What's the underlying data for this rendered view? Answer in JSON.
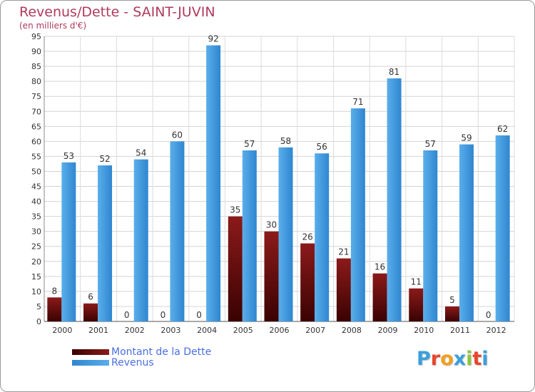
{
  "chart_data": {
    "type": "bar",
    "title": "Revenus/Dette - SAINT-JUVIN",
    "subtitle": "(en milliers d'€)",
    "categories": [
      "2000",
      "2001",
      "2002",
      "2003",
      "2004",
      "2005",
      "2006",
      "2007",
      "2008",
      "2009",
      "2010",
      "2011",
      "2012"
    ],
    "series": [
      {
        "name": "Montant de la Dette",
        "color": "#6b0a0a",
        "values": [
          8,
          6,
          0,
          0,
          0,
          35,
          30,
          26,
          21,
          16,
          11,
          5,
          0
        ]
      },
      {
        "name": "Revenus",
        "color": "#3e97e0",
        "values": [
          53,
          52,
          54,
          60,
          92,
          57,
          58,
          56,
          71,
          81,
          57,
          59,
          62
        ]
      }
    ],
    "ylim": [
      0,
      95
    ],
    "yticks": [
      0,
      5,
      10,
      15,
      20,
      25,
      30,
      35,
      40,
      45,
      50,
      55,
      60,
      65,
      70,
      75,
      80,
      85,
      90,
      95
    ],
    "grid": true,
    "legend_position": "bottom-left"
  },
  "logo": {
    "text": "Proxiti",
    "colors": [
      "#3b9fdc",
      "#e8452c",
      "#f0a020",
      "#3b9fdc",
      "#8cc63f",
      "#e8452c",
      "#3b9fdc"
    ]
  }
}
